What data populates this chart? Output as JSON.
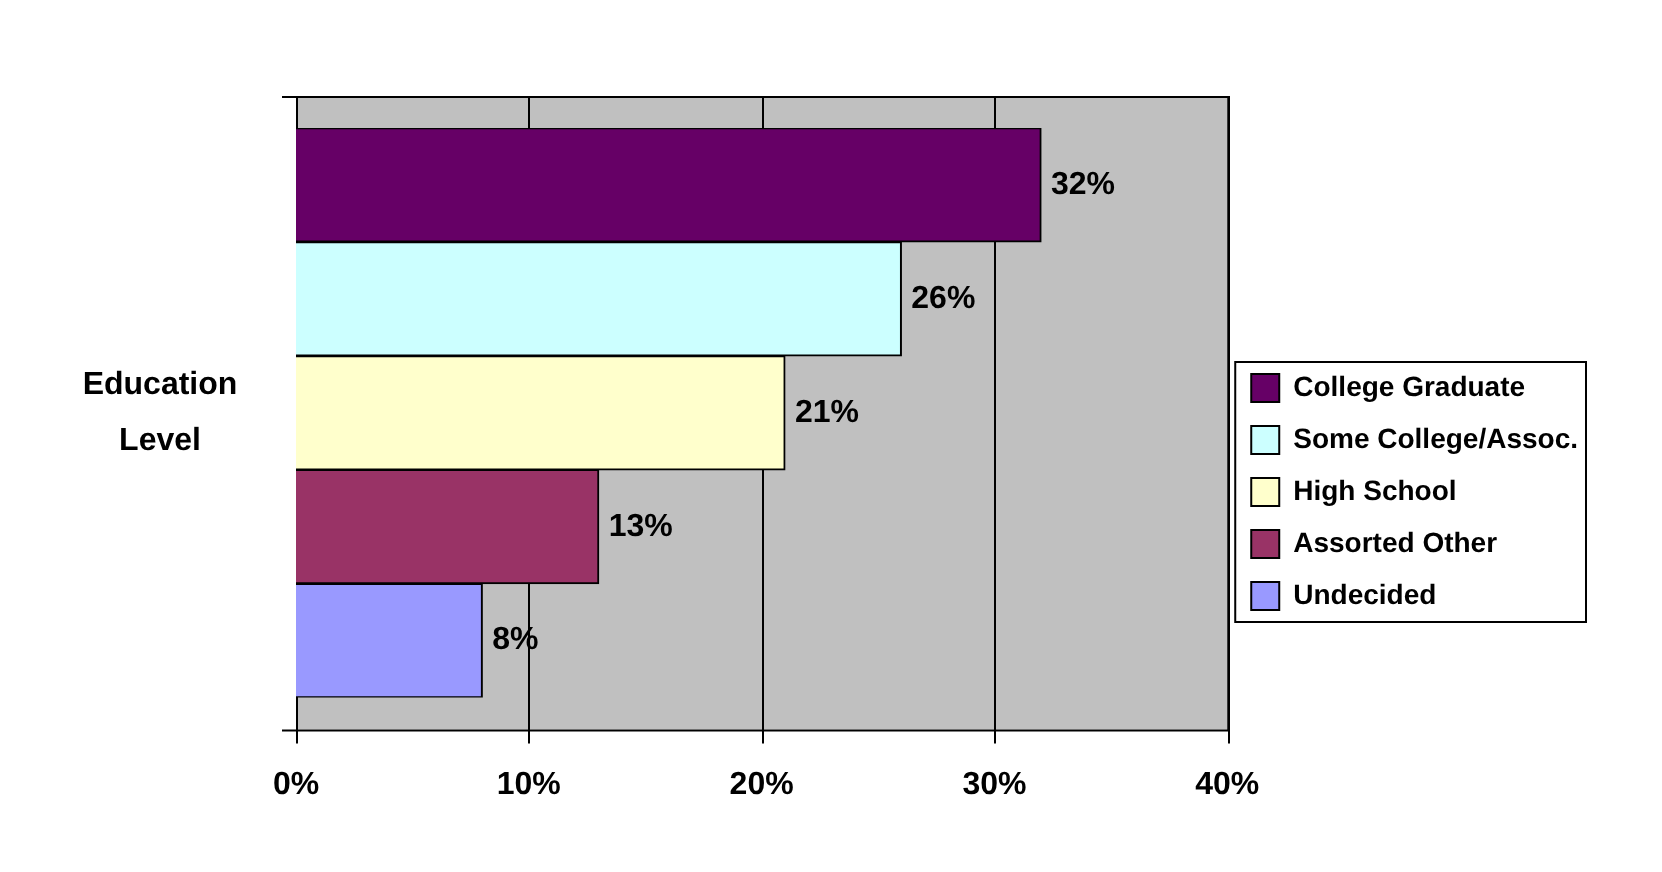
{
  "chart_data": {
    "type": "bar",
    "orientation": "horizontal",
    "ylabel": "Education Level",
    "categories": [
      null,
      null,
      null,
      null,
      null
    ],
    "series": [
      {
        "name": "College Graduate",
        "color": "#660066",
        "values": [
          32,
          null,
          null,
          null,
          null
        ],
        "value_labels": [
          "32%",
          null,
          null,
          null,
          null
        ]
      },
      {
        "name": "Some College/Assoc.",
        "color": "#ccffff",
        "values": [
          null,
          26,
          null,
          null,
          null
        ],
        "value_labels": [
          null,
          "26%",
          null,
          null,
          null
        ]
      },
      {
        "name": "High School",
        "color": "#ffffcc",
        "values": [
          null,
          null,
          21,
          null,
          null
        ],
        "value_labels": [
          null,
          null,
          "21%",
          null,
          null
        ]
      },
      {
        "name": "Assorted Other",
        "color": "#993366",
        "values": [
          null,
          null,
          null,
          13,
          null
        ],
        "value_labels": [
          null,
          null,
          null,
          "13%",
          null
        ]
      },
      {
        "name": "Undecided",
        "color": "#9999ff",
        "values": [
          null,
          null,
          null,
          null,
          8
        ],
        "value_labels": [
          null,
          null,
          null,
          null,
          "8%"
        ]
      }
    ],
    "xlim": [
      0,
      40
    ],
    "xticks": [
      {
        "value": 0,
        "label": "0%"
      },
      {
        "value": 10,
        "label": "10%"
      },
      {
        "value": 20,
        "label": "20%"
      },
      {
        "value": 30,
        "label": "30%"
      },
      {
        "value": 40,
        "label": "40%"
      }
    ],
    "grid": "x",
    "legend": "right"
  }
}
